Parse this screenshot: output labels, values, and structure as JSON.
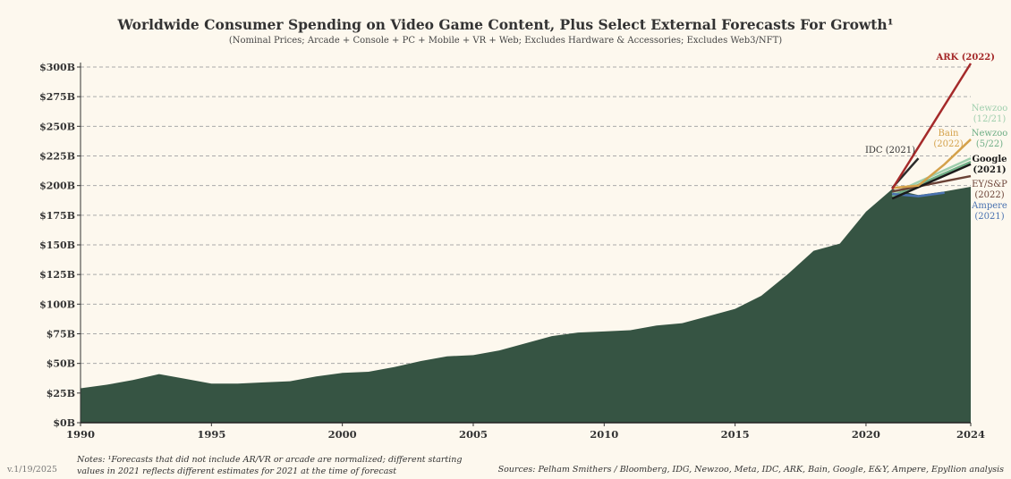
{
  "chart_data": {
    "type": "area",
    "title": "Worldwide Consumer Spending on Video Game Content, Plus Select External Forecasts For Growth¹",
    "subtitle": "(Nominal Prices; Arcade + Console + PC + Mobile + VR + Web; Excludes Hardware & Accessories; Excludes Web3/NFT)",
    "xlabel": "",
    "ylabel": "",
    "ylim": [
      0,
      300
    ],
    "xlim": [
      1990,
      2024
    ],
    "y_ticks": [
      "$0B",
      "$25B",
      "$50B",
      "$75B",
      "$100B",
      "$125B",
      "$150B",
      "$175B",
      "$200B",
      "$225B",
      "$250B",
      "$275B",
      "$300B"
    ],
    "x_ticks": [
      "1990",
      "1995",
      "2000",
      "2005",
      "2010",
      "2015",
      "2020",
      "2024"
    ],
    "grid": true,
    "color": "#365443",
    "x": [
      1990,
      1991,
      1992,
      1993,
      1994,
      1995,
      1996,
      1997,
      1998,
      1999,
      2000,
      2001,
      2002,
      2003,
      2004,
      2005,
      2006,
      2007,
      2008,
      2009,
      2010,
      2011,
      2012,
      2013,
      2014,
      2015,
      2016,
      2017,
      2018,
      2019,
      2020,
      2021,
      2022,
      2023,
      2024
    ],
    "values": [
      29,
      32,
      36,
      41,
      37,
      33,
      33,
      34,
      35,
      39,
      42,
      43,
      47,
      52,
      56,
      57,
      61,
      67,
      73,
      76,
      77,
      78,
      82,
      84,
      90,
      96,
      107,
      125,
      145,
      151,
      178,
      197,
      192,
      195,
      199
    ],
    "forecasts": [
      {
        "name": "ARK (2022)",
        "label": [
          "ARK (2022)"
        ],
        "color": "#a52a2a",
        "x": [
          2021,
          2024
        ],
        "values": [
          197,
          303
        ]
      },
      {
        "name": "IDC (2021)",
        "label": [
          "IDC (2021)"
        ],
        "color": "#2b2b2b",
        "x": [
          2021,
          2022
        ],
        "values": [
          198,
          223
        ]
      },
      {
        "name": "Bain (2022)",
        "label": [
          "Bain",
          "(2022)"
        ],
        "color": "#d4a14a",
        "x": [
          2021,
          2022,
          2023,
          2024
        ],
        "values": [
          198,
          200,
          218,
          239
        ]
      },
      {
        "name": "Newzoo (12/21)",
        "label": [
          "Newzoo",
          "(12/21)"
        ],
        "color": "#9fcfae",
        "x": [
          2021,
          2024
        ],
        "values": [
          193,
          223
        ]
      },
      {
        "name": "Newzoo (5/22)",
        "label": [
          "Newzoo",
          "(5/22)"
        ],
        "color": "#6fae86",
        "x": [
          2021,
          2024
        ],
        "values": [
          191,
          220
        ]
      },
      {
        "name": "Google (2021)",
        "label": [
          "Google",
          "(2021)"
        ],
        "color": "#1a1a1a",
        "x": [
          2021,
          2024
        ],
        "values": [
          189,
          218
        ]
      },
      {
        "name": "EY/S&P (2022)",
        "label": [
          "EY/S&P",
          "(2022)"
        ],
        "color": "#6b4236",
        "x": [
          2021,
          2024
        ],
        "values": [
          195,
          208
        ]
      },
      {
        "name": "Ampere (2021)",
        "label": [
          "Ampere",
          "(2021)"
        ],
        "color": "#4a72b0",
        "x": [
          2021,
          2022,
          2023
        ],
        "values": [
          193,
          191,
          194
        ]
      }
    ]
  },
  "footer": {
    "notes_line1": "Notes: ¹Forecasts that did not include AR/VR or arcade are normalized; different starting",
    "notes_line2": "values in 2021 reflects different estimates for 2021 at the time of forecast",
    "version": "v.1/19/2025",
    "sources": "Sources: Pelham Smithers / Bloomberg, IDG, Newzoo, Meta, IDC, ARK, Bain, Google, E&Y, Ampere, Epyllion analysis"
  }
}
